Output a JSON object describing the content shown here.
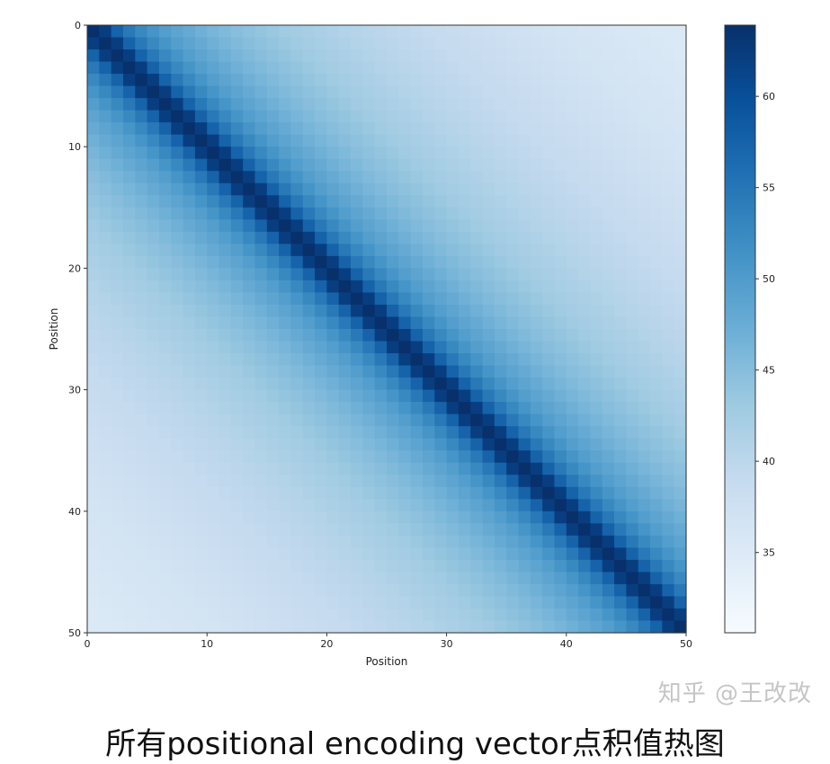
{
  "chart_data": {
    "type": "heatmap",
    "title": "",
    "xlabel": "Position",
    "ylabel": "Position",
    "xlim": [
      0,
      50
    ],
    "ylim": [
      0,
      50
    ],
    "y_inverted": true,
    "x_ticks": [
      0,
      10,
      20,
      30,
      40,
      50
    ],
    "y_ticks": [
      0,
      10,
      20,
      30,
      40,
      50
    ],
    "grid_size": [
      50,
      50
    ],
    "structure": "symmetric Toeplitz: value depends on |row - col|",
    "values_by_offset": [
      64.0,
      62.1,
      57.4,
      54.6,
      52.6,
      51.0,
      49.7,
      48.7,
      47.8,
      46.9,
      46.2,
      45.5,
      44.9,
      44.4,
      43.9,
      43.4,
      42.9,
      42.5,
      42.1,
      41.7,
      41.4,
      41.0,
      40.7,
      40.4,
      40.1,
      39.8,
      39.6,
      39.3,
      39.0,
      38.8,
      38.6,
      38.3,
      38.1,
      37.9,
      37.7,
      37.5,
      37.3,
      37.1,
      36.9,
      36.7,
      36.6,
      36.4,
      36.2,
      36.1,
      35.9,
      35.7,
      35.6,
      35.4,
      35.3,
      35.2
    ],
    "colormap": "Blues",
    "colormap_stops": [
      "#f7fbff",
      "#deebf7",
      "#c6dbef",
      "#9ecae1",
      "#6baed6",
      "#4292c6",
      "#2171b5",
      "#08519c",
      "#08306b"
    ],
    "colorbar": {
      "range": [
        30.6,
        63.9
      ],
      "ticks": [
        35,
        40,
        45,
        50,
        55,
        60
      ]
    }
  },
  "caption": "所有positional encoding vector点积值热图",
  "watermark": "知乎 @王改改"
}
